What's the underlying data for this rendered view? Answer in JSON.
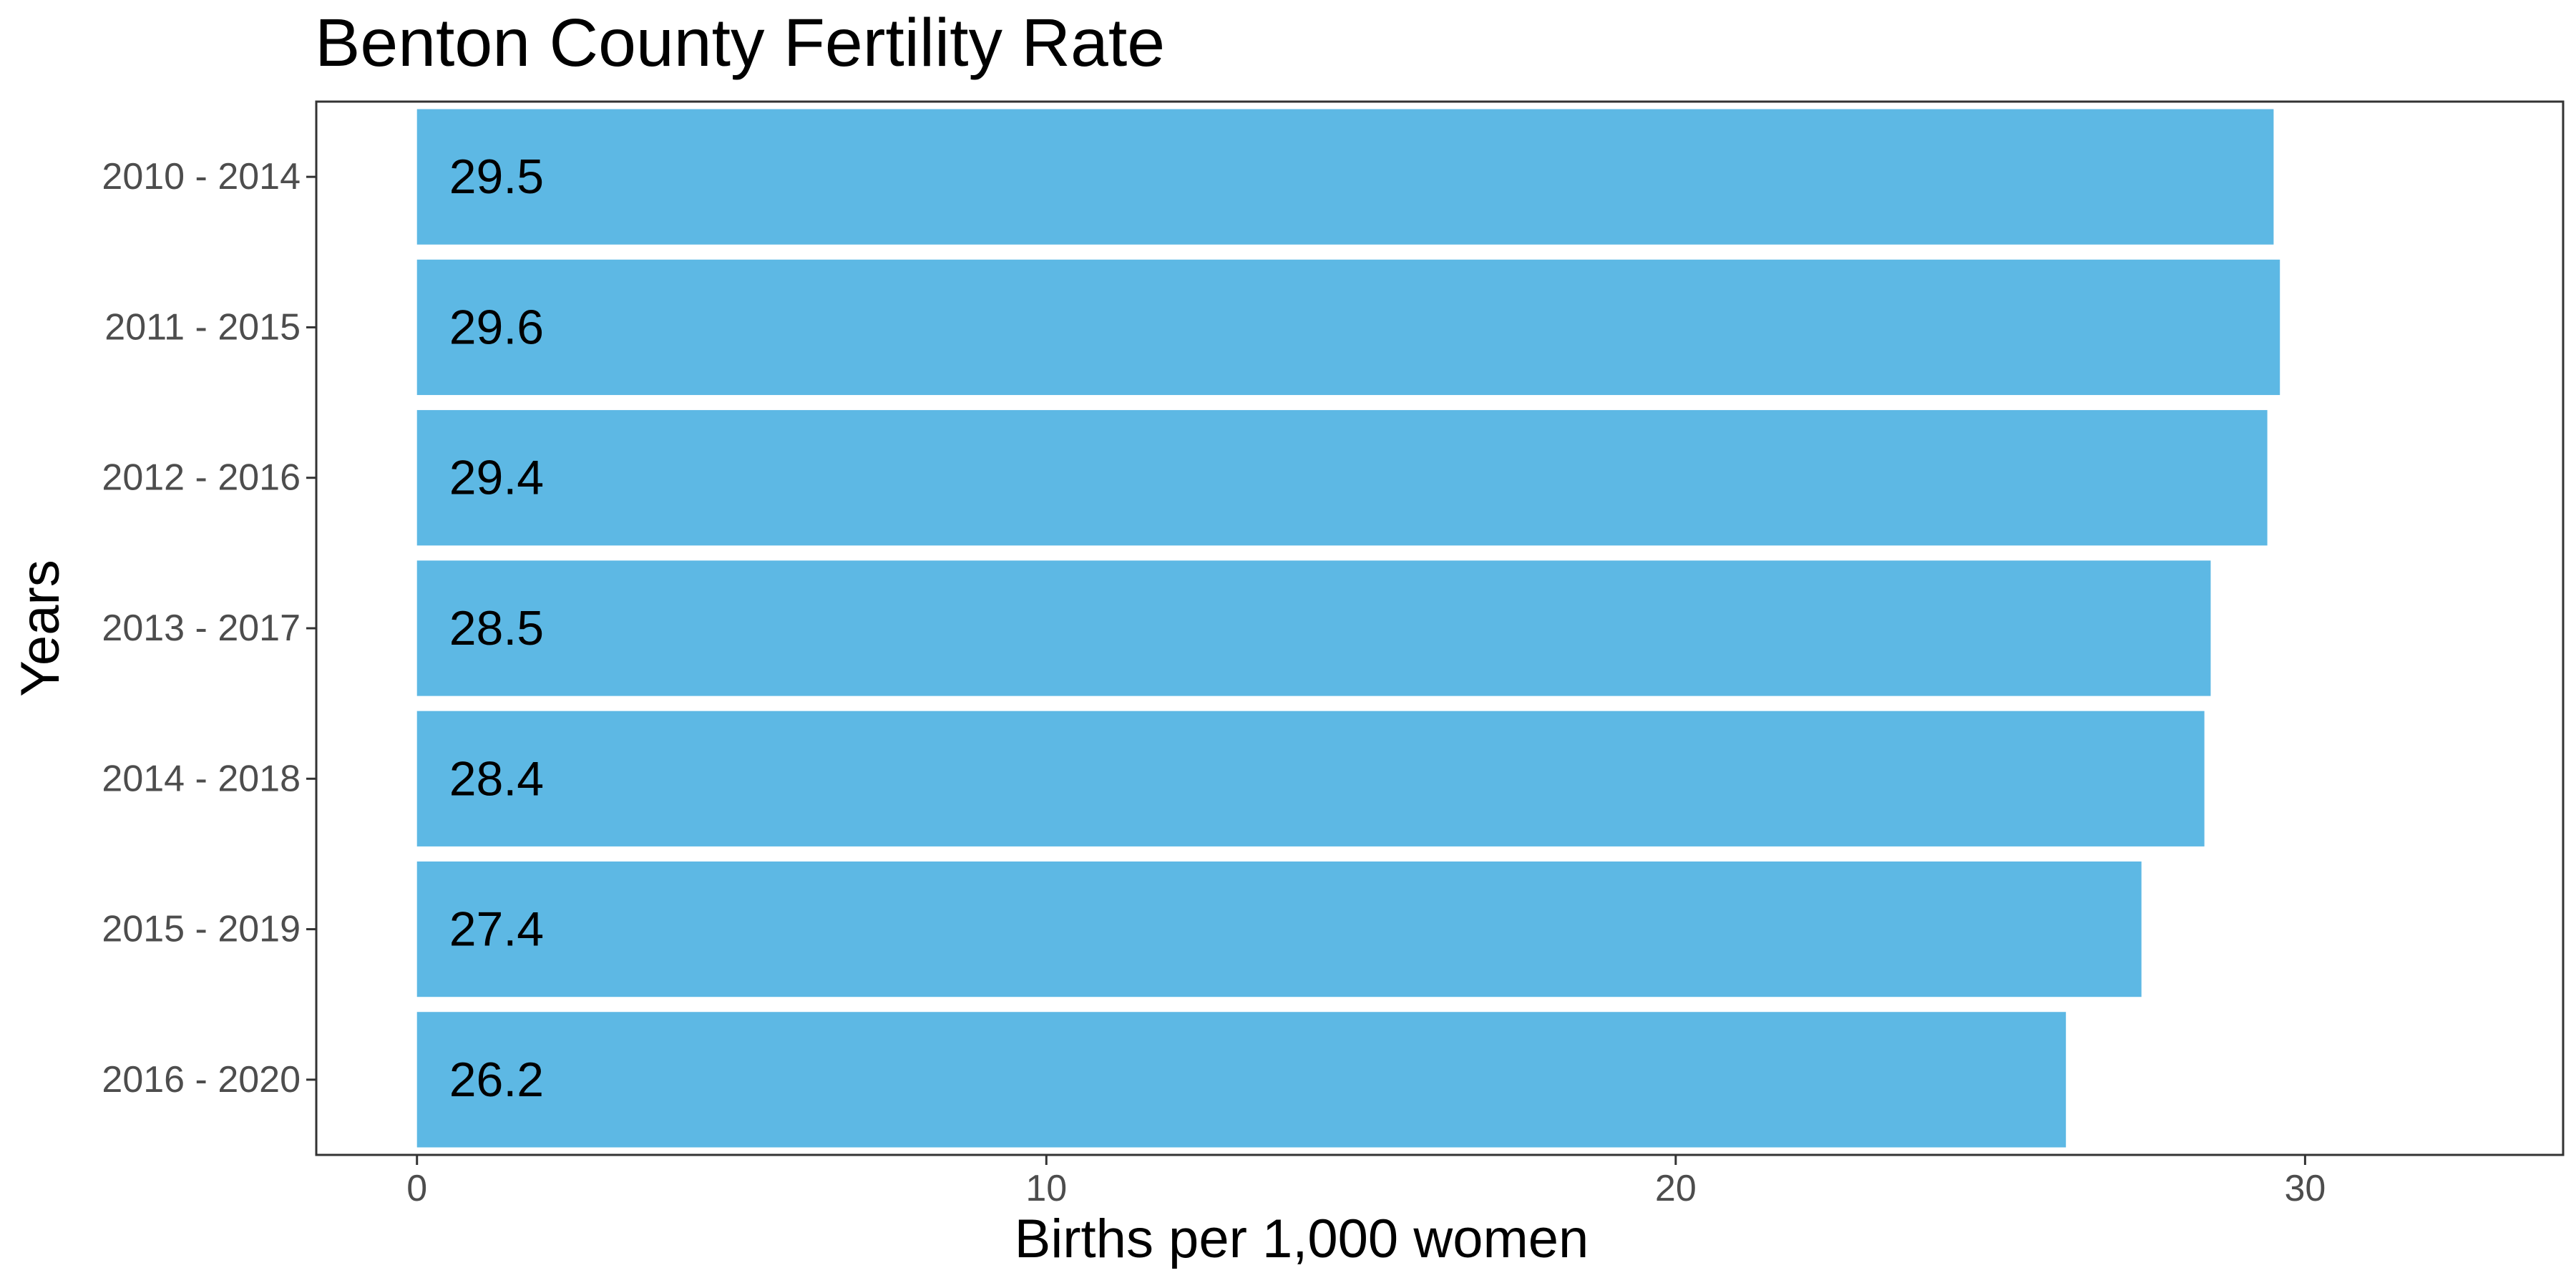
{
  "chart_data": {
    "type": "bar",
    "orientation": "horizontal",
    "title": "Benton County Fertility Rate",
    "xlabel": "Births per 1,000 women",
    "ylabel": "Years",
    "categories": [
      "2010 - 2014",
      "2011 - 2015",
      "2012 - 2016",
      "2013 - 2017",
      "2014 - 2018",
      "2015 - 2019",
      "2016 - 2020"
    ],
    "values": [
      29.5,
      29.6,
      29.4,
      28.5,
      28.4,
      27.4,
      26.2
    ],
    "data_labels": [
      "29.5",
      "29.6",
      "29.4",
      "28.5",
      "28.4",
      "27.4",
      "26.2"
    ],
    "xlim": [
      -1.6,
      34.1
    ],
    "xticks": [
      0,
      10,
      20,
      30
    ],
    "xtick_labels": [
      "0",
      "10",
      "20",
      "30"
    ],
    "grid": false,
    "legend": "none",
    "colors": {
      "bar": "#5db8e4",
      "frame": "#333333",
      "tick_text": "#4d4d4d"
    }
  }
}
